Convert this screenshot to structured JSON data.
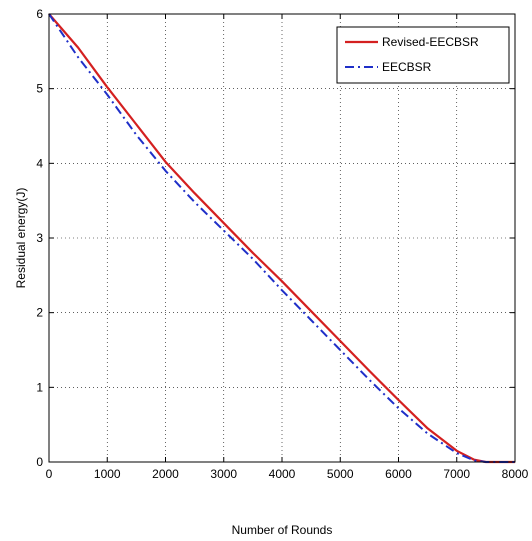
{
  "chart_data": {
    "type": "line",
    "title": "",
    "xlabel": "Number of Rounds",
    "ylabel": "Residual energy(J)",
    "xlim": [
      0,
      8000
    ],
    "ylim": [
      0,
      6
    ],
    "xticks": [
      0,
      1000,
      2000,
      3000,
      4000,
      5000,
      6000,
      7000,
      8000
    ],
    "yticks": [
      0,
      1,
      2,
      3,
      4,
      5,
      6
    ],
    "xtick_labels": [
      "0",
      "1000",
      "2000",
      "3000",
      "4000",
      "5000",
      "6000",
      "7000",
      "8000"
    ],
    "ytick_labels": [
      "0",
      "1",
      "2",
      "3",
      "4",
      "5",
      "6"
    ],
    "grid": true,
    "legend": {
      "position": "top-right"
    },
    "series": [
      {
        "name": "Revised-EECBSR",
        "color": "#d42020",
        "style": "solid",
        "x": [
          0,
          500,
          1000,
          1500,
          2000,
          2500,
          3000,
          3500,
          4000,
          4500,
          5000,
          5500,
          6000,
          6500,
          7000,
          7300,
          7500,
          8000
        ],
        "y": [
          6.0,
          5.55,
          5.02,
          4.52,
          4.02,
          3.6,
          3.2,
          2.8,
          2.42,
          2.02,
          1.62,
          1.22,
          0.83,
          0.45,
          0.15,
          0.03,
          0.0,
          0.0
        ]
      },
      {
        "name": "EECBSR",
        "color": "#1f2fc8",
        "style": "dashdot",
        "x": [
          0,
          500,
          1000,
          1500,
          2000,
          2500,
          3000,
          3500,
          4000,
          4500,
          5000,
          5500,
          6000,
          6500,
          7000,
          7300,
          7500,
          8000
        ],
        "y": [
          6.0,
          5.42,
          4.92,
          4.38,
          3.9,
          3.48,
          3.1,
          2.72,
          2.3,
          1.9,
          1.5,
          1.1,
          0.72,
          0.38,
          0.12,
          0.02,
          0.0,
          0.0
        ]
      }
    ]
  }
}
